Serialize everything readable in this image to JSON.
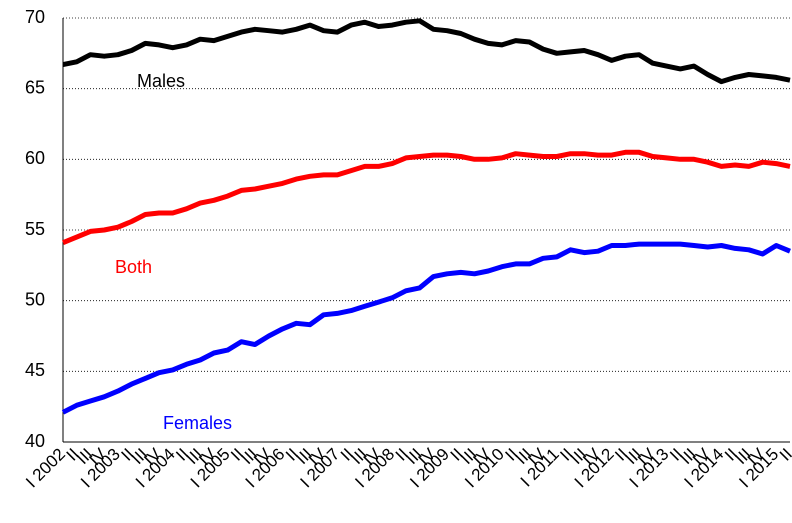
{
  "chart_data": {
    "type": "line",
    "categories": [
      "I 2002",
      "II",
      "III",
      "IV",
      "I 2003",
      "II",
      "III",
      "IV",
      "I 2004",
      "II",
      "III",
      "IV",
      "I 2005",
      "II",
      "III",
      "IV",
      "I 2006",
      "II",
      "III",
      "IV",
      "I 2007",
      "II",
      "III",
      "IV",
      "I 2008",
      "II",
      "III",
      "IV",
      "I 2009",
      "II",
      "III",
      "IV",
      "I 2010",
      "II",
      "III",
      "IV",
      "I 2011",
      "II",
      "III",
      "IV",
      "I 2012",
      "II",
      "III",
      "IV",
      "I 2013",
      "II",
      "III",
      "IV",
      "I 2014",
      "II",
      "III",
      "IV",
      "I 2015",
      "II"
    ],
    "series": [
      {
        "name": "Males",
        "color": "#000000",
        "values": [
          66.7,
          66.9,
          67.4,
          67.3,
          67.4,
          67.7,
          68.2,
          68.1,
          67.9,
          68.1,
          68.5,
          68.4,
          68.7,
          69.0,
          69.2,
          69.1,
          69.0,
          69.2,
          69.5,
          69.1,
          69.0,
          69.5,
          69.7,
          69.4,
          69.5,
          69.7,
          69.8,
          69.2,
          69.1,
          68.9,
          68.5,
          68.2,
          68.1,
          68.4,
          68.3,
          67.8,
          67.5,
          67.6,
          67.7,
          67.4,
          67.0,
          67.3,
          67.4,
          66.8,
          66.6,
          66.4,
          66.6,
          66.0,
          65.5,
          65.8,
          66.0,
          65.9,
          65.8,
          65.6
        ]
      },
      {
        "name": "Both",
        "color": "#ff0000",
        "values": [
          54.1,
          54.5,
          54.9,
          55.0,
          55.2,
          55.6,
          56.1,
          56.2,
          56.2,
          56.5,
          56.9,
          57.1,
          57.4,
          57.8,
          57.9,
          58.1,
          58.3,
          58.6,
          58.8,
          58.9,
          58.9,
          59.2,
          59.5,
          59.5,
          59.7,
          60.1,
          60.2,
          60.3,
          60.3,
          60.2,
          60.0,
          60.0,
          60.1,
          60.4,
          60.3,
          60.2,
          60.2,
          60.4,
          60.4,
          60.3,
          60.3,
          60.5,
          60.5,
          60.2,
          60.1,
          60.0,
          60.0,
          59.8,
          59.5,
          59.6,
          59.5,
          59.8,
          59.7,
          59.5
        ]
      },
      {
        "name": "Females",
        "color": "#0000ff",
        "values": [
          42.1,
          42.6,
          42.9,
          43.2,
          43.6,
          44.1,
          44.5,
          44.9,
          45.1,
          45.5,
          45.8,
          46.3,
          46.5,
          47.1,
          46.9,
          47.5,
          48.0,
          48.4,
          48.3,
          49.0,
          49.1,
          49.3,
          49.6,
          49.9,
          50.2,
          50.7,
          50.9,
          51.7,
          51.9,
          52.0,
          51.9,
          52.1,
          52.4,
          52.6,
          52.6,
          53.0,
          53.1,
          53.6,
          53.4,
          53.5,
          53.9,
          53.9,
          54.0,
          54.0,
          54.0,
          54.0,
          53.9,
          53.8,
          53.9,
          53.7,
          53.6,
          53.3,
          53.9,
          53.5
        ]
      }
    ],
    "ylim": [
      40,
      70
    ],
    "yticks": [
      40,
      45,
      50,
      55,
      60,
      65,
      70
    ],
    "grid": true
  }
}
